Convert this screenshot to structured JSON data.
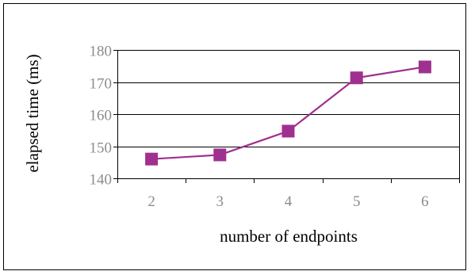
{
  "chart_data": {
    "type": "line",
    "title": "",
    "xlabel": "number of endpoints",
    "ylabel": "elapsed time (ms)",
    "categories": [
      "2",
      "3",
      "4",
      "5",
      "6"
    ],
    "series": [
      {
        "values": [
          146,
          147.3,
          154.7,
          171.3,
          174.7
        ],
        "color": "#a0308f",
        "marker": "square"
      }
    ],
    "ylim": [
      140,
      180
    ],
    "yticks": [
      "140",
      "150",
      "160",
      "170",
      "180"
    ],
    "grid": "horizontal",
    "legend": "none"
  }
}
